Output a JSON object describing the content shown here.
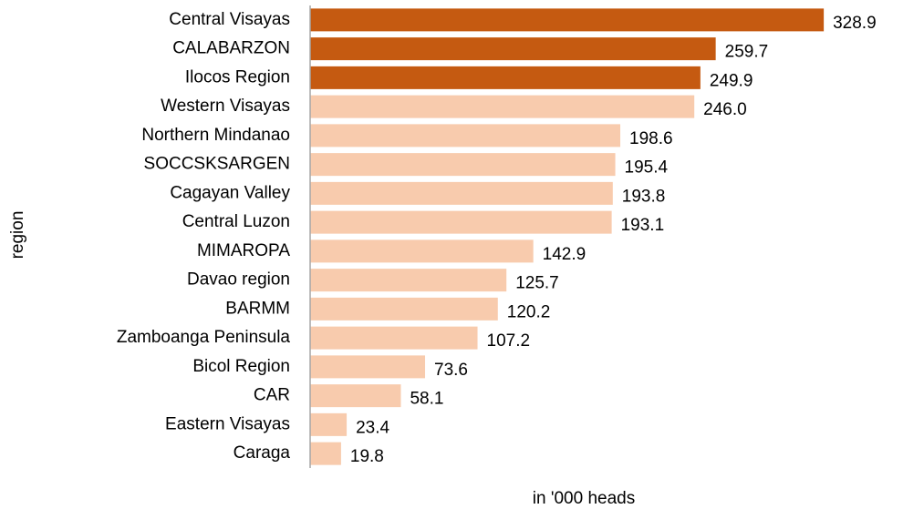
{
  "chart_data": {
    "type": "bar",
    "orientation": "horizontal",
    "xlabel": "in '000 heads",
    "ylabel": "region",
    "categories": [
      "Central Visayas",
      "CALABARZON",
      "Ilocos Region",
      "Western Visayas",
      "Northern Mindanao",
      "SOCCSKSARGEN",
      "Cagayan Valley",
      "Central Luzon",
      "MIMAROPA",
      "Davao region",
      "BARMM",
      "Zamboanga Peninsula",
      "Bicol Region",
      "CAR",
      "Eastern Visayas",
      "Caraga"
    ],
    "values": [
      328.9,
      259.7,
      249.9,
      246.0,
      198.6,
      195.4,
      193.8,
      193.1,
      142.9,
      125.7,
      120.2,
      107.2,
      73.6,
      58.1,
      23.4,
      19.8
    ],
    "value_labels": [
      "328.9",
      "259.7",
      "249.9",
      "246.0",
      "198.6",
      "195.4",
      "193.8",
      "193.1",
      "142.9",
      "125.7",
      "120.2",
      "107.2",
      "73.6",
      "58.1",
      "23.4",
      "19.8"
    ],
    "colors": [
      "#c55a11",
      "#c55a11",
      "#c55a11",
      "#f8cbad",
      "#f8cbad",
      "#f8cbad",
      "#f8cbad",
      "#f8cbad",
      "#f8cbad",
      "#f8cbad",
      "#f8cbad",
      "#f8cbad",
      "#f8cbad",
      "#f8cbad",
      "#f8cbad",
      "#f8cbad"
    ],
    "xlim": [
      0,
      330
    ]
  }
}
